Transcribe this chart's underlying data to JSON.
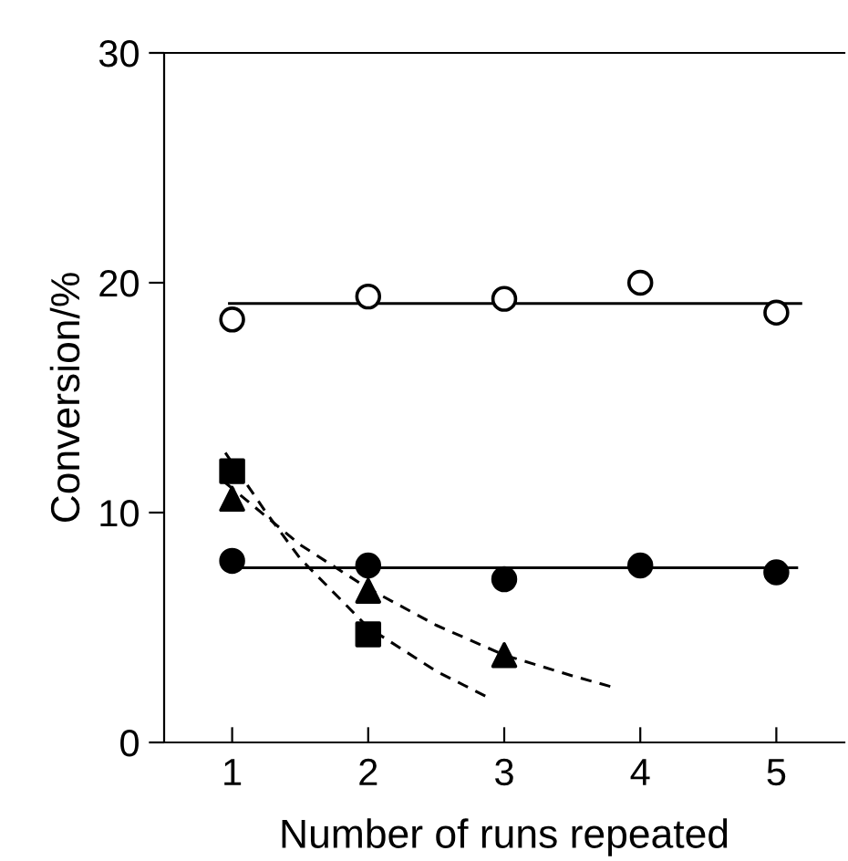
{
  "chart_data": {
    "type": "scatter",
    "xlabel": "Number of runs repeated",
    "ylabel": "Conversion/%",
    "xlim": [
      0.5,
      5.5
    ],
    "ylim": [
      0,
      30
    ],
    "xticks": [
      1,
      2,
      3,
      4,
      5
    ],
    "yticks": [
      0,
      10,
      20,
      30
    ],
    "grid": false,
    "legend": false,
    "series": [
      {
        "marker": "circle",
        "color": "#ffffff",
        "x": [
          1,
          2,
          3,
          4,
          5
        ],
        "values": [
          18.4,
          19.4,
          19.3,
          20.0,
          18.7
        ]
      },
      {
        "type": "line",
        "marker": "none",
        "line_style": "solid",
        "color": "#000000",
        "x": [
          0.98,
          5.18
        ],
        "values": [
          19.1,
          19.1
        ]
      },
      {
        "marker": "circle",
        "color": "#000000",
        "x": [
          1,
          2,
          3,
          4,
          5
        ],
        "values": [
          7.9,
          7.7,
          7.1,
          7.7,
          7.4
        ]
      },
      {
        "type": "line",
        "marker": "none",
        "line_style": "solid",
        "color": "#000000",
        "x": [
          0.95,
          5.15
        ],
        "values": [
          7.6,
          7.6
        ]
      },
      {
        "marker": "square",
        "color": "#000000",
        "x": [
          1,
          2
        ],
        "values": [
          11.8,
          4.7
        ]
      },
      {
        "type": "line",
        "marker": "none",
        "line_style": "dashed",
        "color": "#000000",
        "x": [
          0.95,
          1.25,
          1.5,
          2.0,
          2.5,
          2.9
        ],
        "values": [
          12.6,
          10.0,
          8.0,
          5.0,
          3.1,
          1.9
        ]
      },
      {
        "marker": "triangle",
        "color": "#000000",
        "x": [
          1,
          2,
          3
        ],
        "values": [
          10.6,
          6.6,
          3.8
        ]
      },
      {
        "type": "line",
        "marker": "none",
        "line_style": "dashed",
        "color": "#000000",
        "x": [
          0.95,
          1.5,
          2.0,
          2.5,
          3.0,
          3.5,
          3.8
        ],
        "values": [
          11.3,
          8.6,
          6.7,
          5.1,
          3.8,
          2.9,
          2.4
        ]
      }
    ]
  }
}
